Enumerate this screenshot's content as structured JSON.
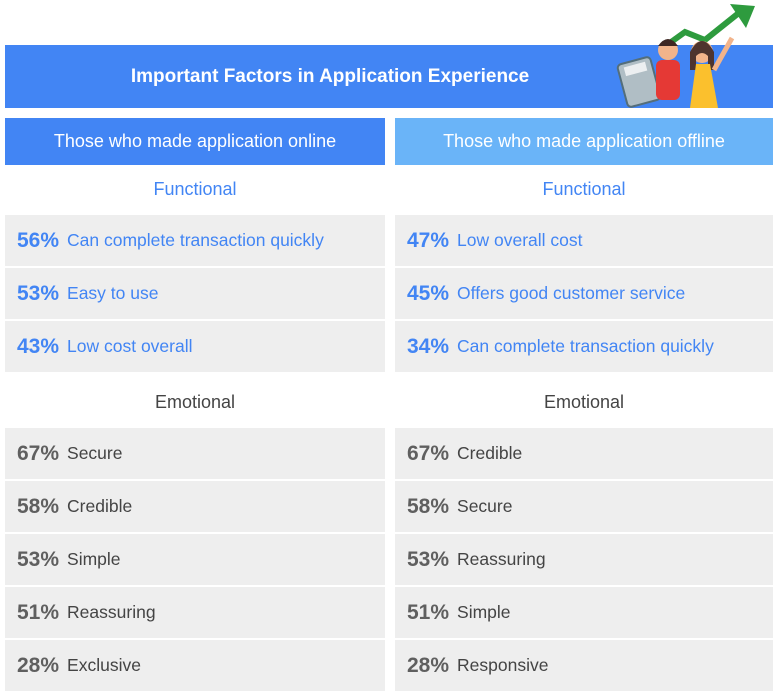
{
  "header": {
    "title": "Important Factors in Application Experience"
  },
  "columns": [
    {
      "header": "Those who made application online",
      "sections": [
        {
          "heading": "Functional",
          "items": [
            {
              "percent": "56%",
              "label": "Can complete transaction quickly"
            },
            {
              "percent": "53%",
              "label": "Easy to use"
            },
            {
              "percent": "43%",
              "label": "Low cost overall"
            }
          ]
        },
        {
          "heading": "Emotional",
          "items": [
            {
              "percent": "67%",
              "label": "Secure"
            },
            {
              "percent": "58%",
              "label": "Credible"
            },
            {
              "percent": "53%",
              "label": "Simple"
            },
            {
              "percent": "51%",
              "label": "Reassuring"
            },
            {
              "percent": "28%",
              "label": "Exclusive"
            }
          ]
        }
      ]
    },
    {
      "header": "Those who made application offline",
      "sections": [
        {
          "heading": "Functional",
          "items": [
            {
              "percent": "47%",
              "label": "Low overall cost"
            },
            {
              "percent": "45%",
              "label": "Offers good customer service"
            },
            {
              "percent": "34%",
              "label": "Can complete transaction quickly"
            }
          ]
        },
        {
          "heading": "Emotional",
          "items": [
            {
              "percent": "67%",
              "label": "Credible"
            },
            {
              "percent": "58%",
              "label": "Secure"
            },
            {
              "percent": "53%",
              "label": "Reassuring"
            },
            {
              "percent": "51%",
              "label": "Simple"
            },
            {
              "percent": "28%",
              "label": "Responsive"
            }
          ]
        }
      ]
    }
  ]
}
